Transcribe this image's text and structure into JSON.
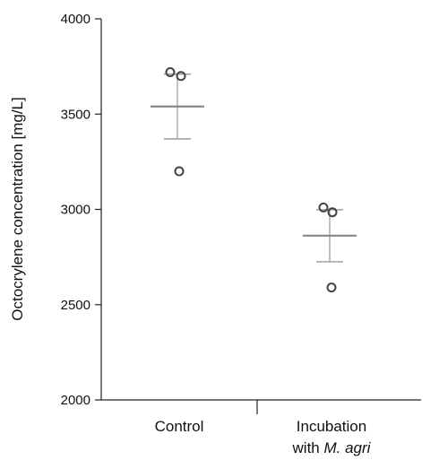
{
  "chart_data": {
    "type": "scatter",
    "ylabel": "Octocrylene concentration [mg/L]",
    "xlabel": "",
    "ylim": [
      2000,
      4000
    ],
    "yticks": [
      2000,
      2500,
      3000,
      3500,
      4000
    ],
    "categories": [
      {
        "line1": "Control",
        "line2_prefix": "",
        "line2_italic": ""
      },
      {
        "line1": "Incubation",
        "line2_prefix": "with ",
        "line2_italic": "M. agri"
      }
    ],
    "groups": [
      {
        "category": "Control",
        "points": [
          3720,
          3700,
          3200
        ],
        "mean": 3540,
        "error_upper": 3710,
        "error_lower": 3370
      },
      {
        "category": "Incubation with M. agri",
        "points": [
          3010,
          2985,
          2590
        ],
        "mean": 2862,
        "error_upper": 2998,
        "error_lower": 2725
      }
    ],
    "grid": false,
    "legend": "none",
    "colors": {
      "points": "#444444",
      "mean_line": "#888888",
      "error_bar": "#999999",
      "axis": "#222222"
    }
  }
}
